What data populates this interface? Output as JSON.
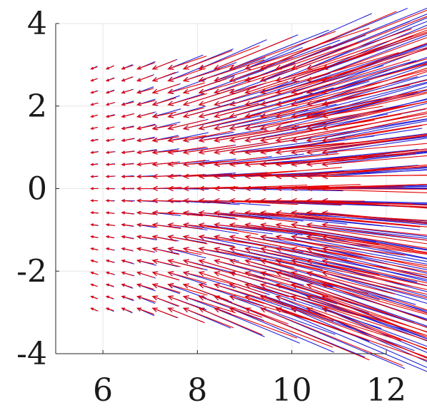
{
  "chart_data": {
    "type": "quiver",
    "title": "",
    "xlabel": "",
    "ylabel": "",
    "xlim": [
      5,
      12
    ],
    "ylim": [
      -4,
      4
    ],
    "grid": true,
    "legend": "none",
    "x_ticks": [
      {
        "value": 6,
        "label": "6"
      },
      {
        "value": 8,
        "label": "8"
      },
      {
        "value": 10,
        "label": "10"
      },
      {
        "value": 12,
        "label": "12"
      }
    ],
    "y_ticks": [
      {
        "value": 4,
        "label": "4"
      },
      {
        "value": 2,
        "label": "2"
      },
      {
        "value": 0,
        "label": "0"
      },
      {
        "value": -2,
        "label": "-2"
      },
      {
        "value": -4,
        "label": "-4"
      }
    ],
    "colors": {
      "series_a": "#1f1fd6",
      "series_b": "#e60000"
    },
    "series": [
      {
        "color": "#1f1fd6",
        "field": {
          "x_start": 5.75,
          "x_end": 10.65,
          "y_min": -2.9,
          "y_max": 2.9,
          "nx": 16,
          "ny": 21,
          "base_length": 0.15,
          "length_gain": 0.26,
          "angle_gain": 0.6,
          "noise": 0.06
        }
      },
      {
        "color": "#e60000",
        "field": {
          "x_start": 5.75,
          "x_end": 10.65,
          "y_min": -2.9,
          "y_max": 2.9,
          "nx": 16,
          "ny": 21,
          "base_length": 0.15,
          "length_gain": 0.24,
          "angle_gain": 0.55,
          "noise": 0.1
        }
      }
    ]
  }
}
